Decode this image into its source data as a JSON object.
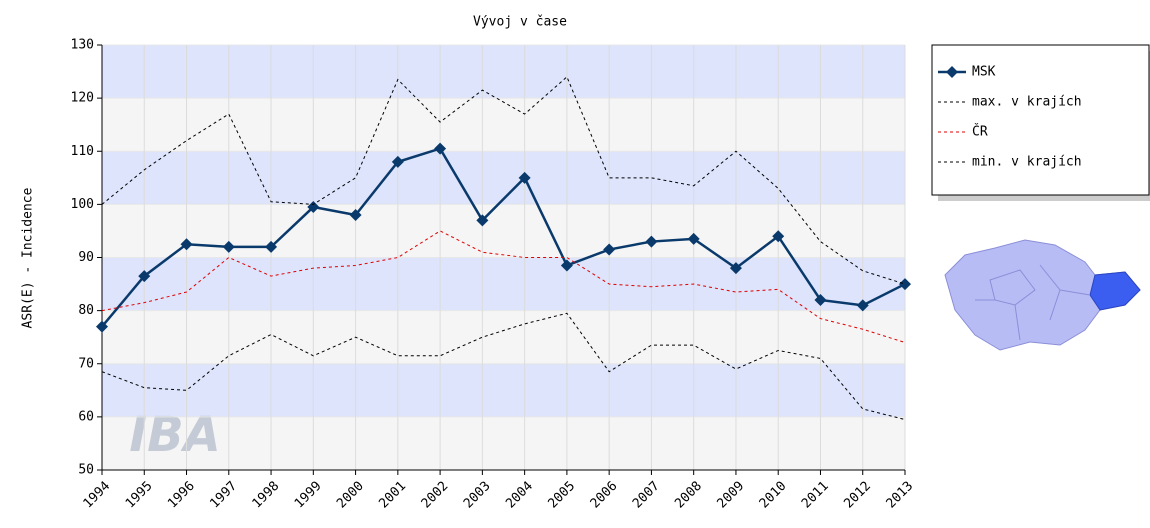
{
  "chart_data": {
    "type": "line",
    "title": "Vývoj v čase",
    "y_label": "ASR(E) - Incidence",
    "watermark": "IBA",
    "categories": [
      "1994",
      "1995",
      "1996",
      "1997",
      "1998",
      "1999",
      "2000",
      "2001",
      "2002",
      "2003",
      "2004",
      "2005",
      "2006",
      "2007",
      "2008",
      "2009",
      "2010",
      "2011",
      "2012",
      "2013"
    ],
    "series": [
      {
        "name": "MSK",
        "color": "#0a3a6b",
        "style": "solid",
        "marker": "diamond",
        "values": [
          77,
          86.5,
          92.5,
          92,
          92,
          99.5,
          98,
          108,
          110.5,
          97,
          105,
          88.5,
          91.5,
          93,
          93.5,
          88,
          94,
          82,
          81,
          85
        ]
      },
      {
        "name": "max. v krajích",
        "color": "#000000",
        "style": "dashed",
        "values": [
          100,
          106.5,
          112,
          117,
          100.5,
          100,
          105,
          123.5,
          115.5,
          121.5,
          117,
          124,
          105,
          105,
          103.5,
          110,
          103,
          93,
          87.5,
          85
        ]
      },
      {
        "name": "ČR",
        "color": "#e00000",
        "style": "dashed",
        "values": [
          80,
          81.5,
          83.5,
          90,
          86.5,
          88,
          88.5,
          90,
          95,
          91,
          90,
          90,
          85,
          84.5,
          85,
          83.5,
          84,
          78.5,
          76.5,
          74
        ]
      },
      {
        "name": "min. v krajích",
        "color": "#000000",
        "style": "dashed",
        "values": [
          68.5,
          65.5,
          65,
          71.5,
          75.5,
          71.5,
          75,
          71.5,
          71.5,
          75,
          77.5,
          79.5,
          68.5,
          73.5,
          73.5,
          69,
          72.5,
          71,
          61.5,
          59.5
        ]
      }
    ],
    "ylim": [
      50,
      130
    ],
    "yticks": [
      50,
      60,
      70,
      80,
      90,
      100,
      110,
      120,
      130
    ],
    "grid": true
  }
}
